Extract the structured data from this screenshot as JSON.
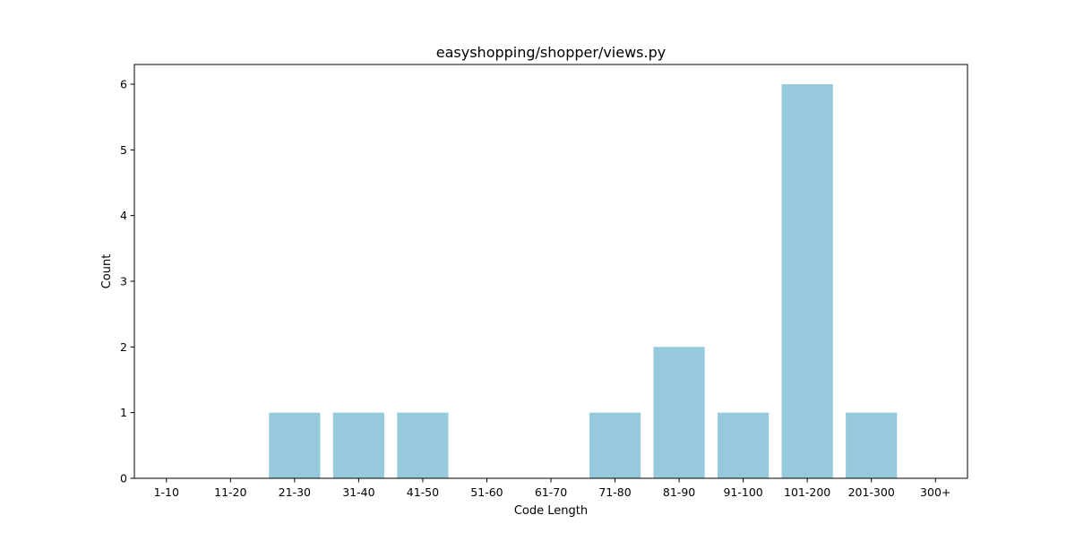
{
  "chart_data": {
    "type": "bar",
    "title": "easyshopping/shopper/views.py",
    "xlabel": "Code Length",
    "ylabel": "Count",
    "categories": [
      "1-10",
      "11-20",
      "21-30",
      "31-40",
      "41-50",
      "51-60",
      "61-70",
      "71-80",
      "81-90",
      "91-100",
      "101-200",
      "201-300",
      "300+"
    ],
    "values": [
      0,
      0,
      1,
      1,
      1,
      0,
      0,
      1,
      2,
      1,
      6,
      1,
      0
    ],
    "ylim": [
      0,
      6.3
    ],
    "yticks": [
      0,
      1,
      2,
      3,
      4,
      5,
      6
    ],
    "bar_color": "#96c9dc",
    "grid": false,
    "legend": "none"
  }
}
